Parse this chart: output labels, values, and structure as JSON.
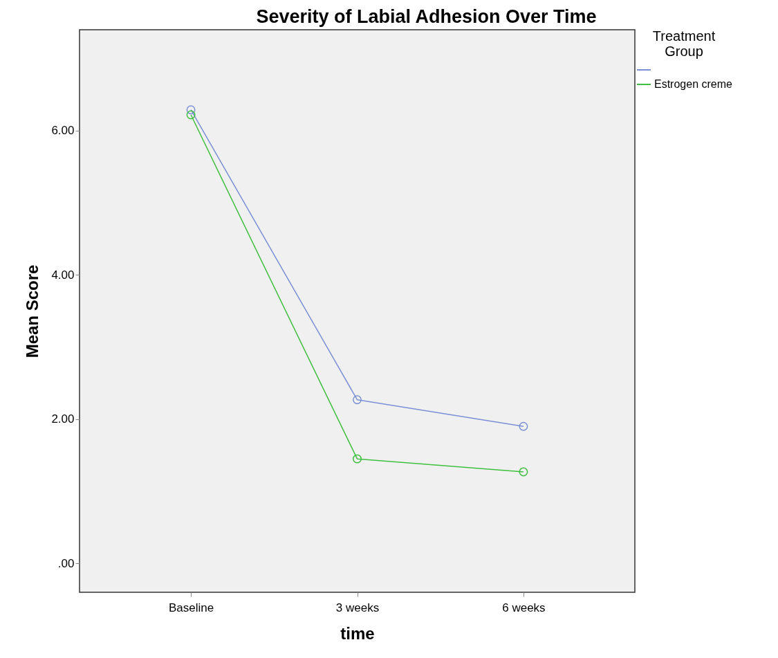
{
  "chart_data": {
    "type": "line",
    "title": "Severity of Labial Adhesion Over Time",
    "xlabel": "time",
    "ylabel": "Mean Score",
    "legend_title": "Treatment Group",
    "categories": [
      "Baseline",
      "3 weeks",
      "6 weeks"
    ],
    "series": [
      {
        "color": "#7b8fd4",
        "values": [
          6.29,
          2.27,
          1.9
        ]
      },
      {
        "name": "Estrogen creme",
        "color": "#3fbf3f",
        "values": [
          6.22,
          1.45,
          1.27
        ]
      }
    ],
    "ylim": [
      -0.4,
      7.4
    ],
    "yticks": [
      {
        "value": 0,
        "label": ".00"
      },
      {
        "value": 2,
        "label": "2.00"
      },
      {
        "value": 4,
        "label": "4.00"
      },
      {
        "value": 6,
        "label": "6.00"
      }
    ],
    "grid": false,
    "legend": "top right",
    "marker": "circle",
    "line_style": "solid"
  }
}
